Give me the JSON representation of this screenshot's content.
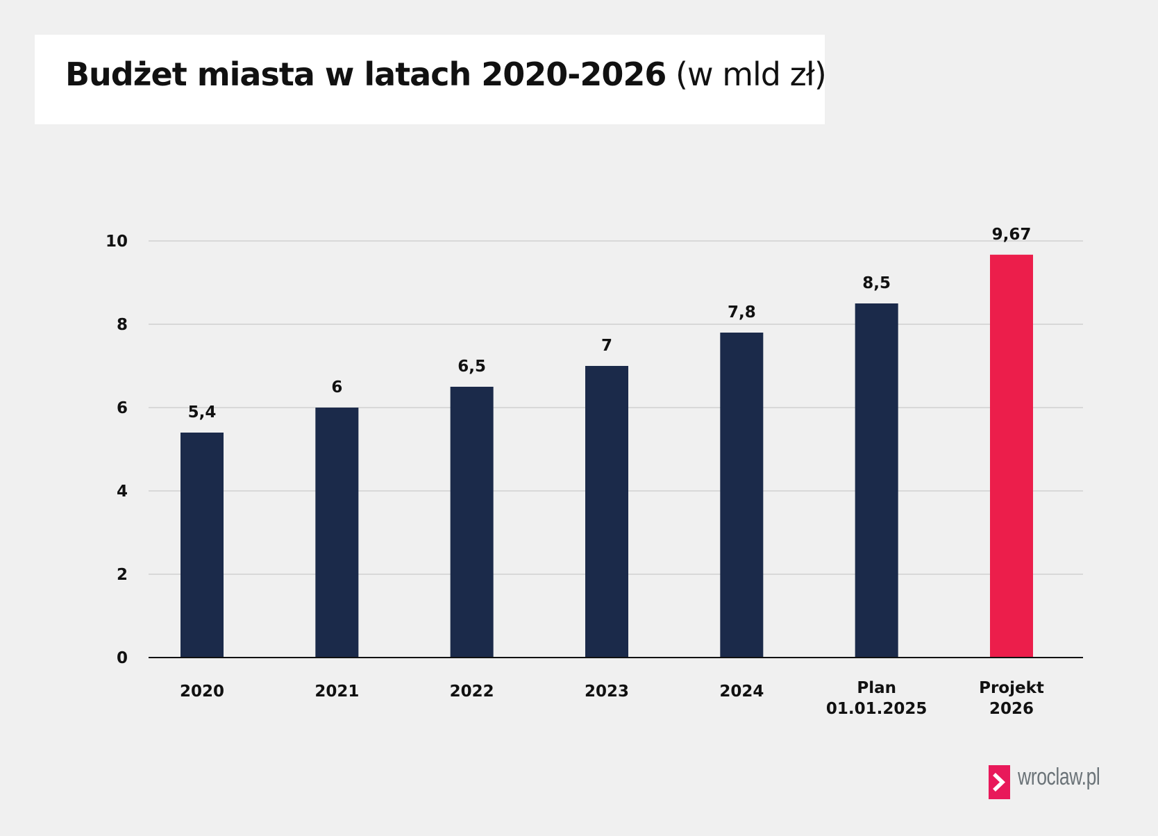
{
  "chart_data": {
    "type": "bar",
    "title": "Budżet miasta w latach 2020-2026",
    "subtitle": "(w mld zł)",
    "categories": [
      "2020",
      "2021",
      "2022",
      "2023",
      "2024",
      [
        "Plan",
        "01.01.2025"
      ],
      [
        "Projekt",
        "2026"
      ]
    ],
    "values": [
      5.4,
      6,
      6.5,
      7,
      7.8,
      8.5,
      9.67
    ],
    "data_labels": [
      "5,4",
      "6",
      "6,5",
      "7",
      "7,8",
      "8,5",
      "9,67"
    ],
    "colors": [
      "#1b2a4a",
      "#1b2a4a",
      "#1b2a4a",
      "#1b2a4a",
      "#1b2a4a",
      "#1b2a4a",
      "#ec1e4b"
    ],
    "ylim": [
      0,
      10
    ],
    "yticks": [
      0,
      2,
      4,
      6,
      8,
      10
    ],
    "grid": true,
    "xlabel": "",
    "ylabel": ""
  },
  "logo": {
    "text": "wroclaw.pl",
    "color": "#e8195a"
  }
}
